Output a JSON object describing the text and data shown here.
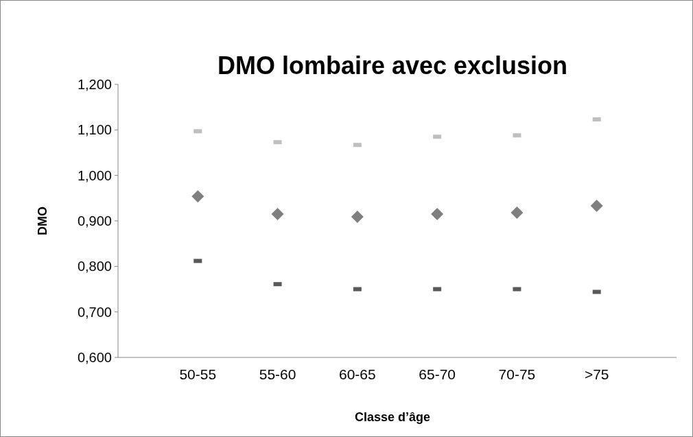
{
  "chart_data": {
    "type": "scatter",
    "title": "DMO lombaire avec exclusion",
    "xlabel": "Classe d’âge",
    "ylabel": "DMO",
    "categories": [
      "50-55",
      "55-60",
      "60-65",
      "65-70",
      "70-75",
      ">75"
    ],
    "ylim": [
      0.6,
      1.2
    ],
    "yticks": [
      {
        "value": 0.6,
        "label": "0,600"
      },
      {
        "value": 0.7,
        "label": "0,700"
      },
      {
        "value": 0.8,
        "label": "0,800"
      },
      {
        "value": 0.9,
        "label": "0,900"
      },
      {
        "value": 1.0,
        "label": "1,000"
      },
      {
        "value": 1.1,
        "label": "1,100"
      },
      {
        "value": 1.2,
        "label": "1,200"
      }
    ],
    "grid": false,
    "series": [
      {
        "color": "#bfbfbf",
        "marker": "square",
        "values": [
          1.097,
          1.073,
          1.067,
          1.085,
          1.088,
          1.123
        ]
      },
      {
        "color": "#7f7f7f",
        "marker": "diamond",
        "values": [
          0.954,
          0.915,
          0.909,
          0.915,
          0.918,
          0.933
        ]
      },
      {
        "color": "#595959",
        "marker": "square",
        "values": [
          0.812,
          0.761,
          0.75,
          0.75,
          0.75,
          0.744
        ]
      }
    ]
  }
}
